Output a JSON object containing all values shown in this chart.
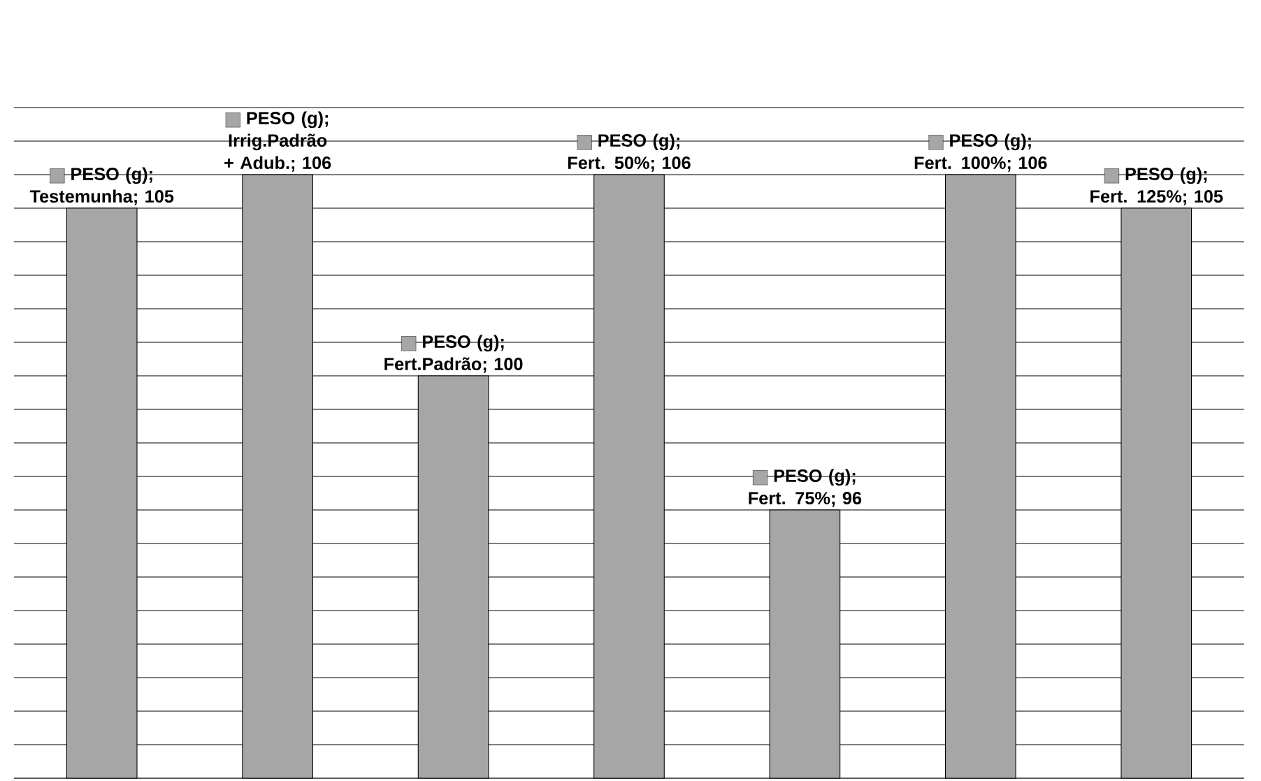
{
  "chart_data": {
    "type": "bar",
    "categories": [
      null,
      null,
      null,
      null,
      null,
      null,
      null
    ],
    "series": [
      {
        "color": "#a6a6a6",
        "values": [
          105,
          106,
          100,
          106,
          96,
          106,
          105
        ],
        "value_labels": [
          "PESO (g); Testemunha; 105",
          "PESO (g); Irrig.Padrão + Adub.; 106",
          "PESO (g); Fert.Padrão; 100",
          "PESO (g); Fert. 50%; 106",
          "PESO (g); Fert. 75%; 96",
          "PESO (g); Fert. 100%; 106",
          "PESO (g); Fert. 125%; 105"
        ]
      }
    ],
    "ylim": [
      88,
      108
    ],
    "grid": "y",
    "tick_labels": false
  }
}
